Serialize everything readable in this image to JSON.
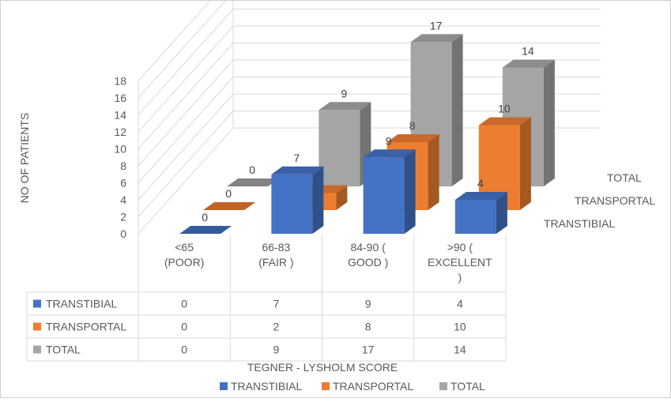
{
  "chart_data": {
    "type": "bar",
    "subtype": "3d-clustered-column-with-data-table",
    "categories": [
      "<65 (POOR)",
      "66-83 (FAIR )",
      "84-90 ( GOOD )",
      ">90 ( EXCELLENT )"
    ],
    "category_lines": [
      [
        "<65",
        "(POOR)"
      ],
      [
        "66-83",
        "(FAIR )"
      ],
      [
        "84-90 (",
        "GOOD )"
      ],
      [
        ">90 (",
        "EXCELLENT",
        ")"
      ]
    ],
    "series": [
      {
        "name": "TRANSTIBIAL",
        "values": [
          0,
          7,
          9,
          4
        ],
        "color": "#4472C4"
      },
      {
        "name": "TRANSPORTAL",
        "values": [
          0,
          2,
          8,
          10
        ],
        "color": "#ED7D31"
      },
      {
        "name": "TOTAL",
        "values": [
          0,
          9,
          17,
          14
        ],
        "color": "#A5A5A5"
      }
    ],
    "xlabel": "TEGNER - LYSHOLM SCORE",
    "ylabel": "NO OF PATIENTS",
    "ylim": [
      0,
      18
    ],
    "yticks": [
      0,
      2,
      4,
      6,
      8,
      10,
      12,
      14,
      16,
      18
    ],
    "grid": true,
    "legend": "bottom",
    "data_table": true
  }
}
